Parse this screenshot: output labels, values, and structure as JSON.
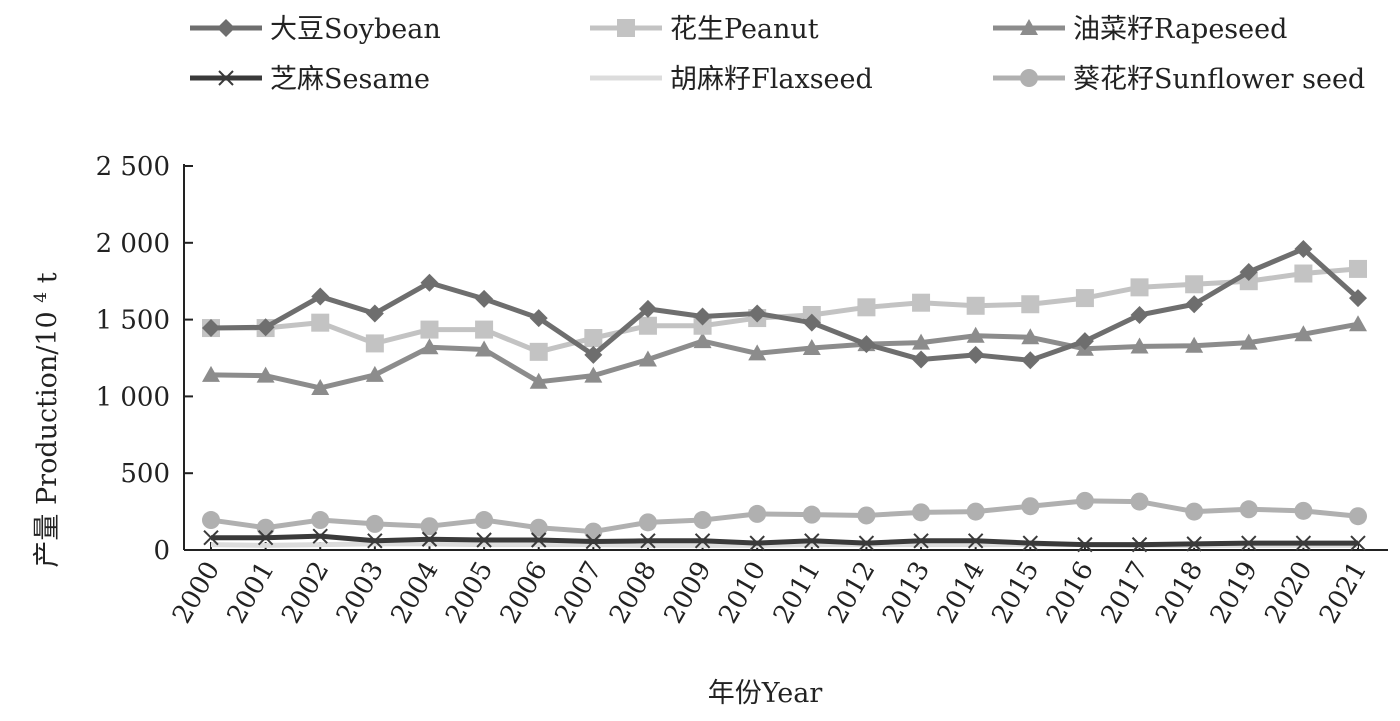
{
  "chart_data": {
    "type": "line",
    "title": "",
    "xlabel": "年份Year",
    "ylabel_cn": "产量",
    "ylabel_en": "Production/10",
    "ylabel_sup": "4",
    "ylabel_unit": " t",
    "ylim": [
      0,
      2500
    ],
    "yticks": [
      {
        "value": 0,
        "label": "0"
      },
      {
        "value": 500,
        "label": "500"
      },
      {
        "value": 1000,
        "label": "1 000"
      },
      {
        "value": 1500,
        "label": "1 500"
      },
      {
        "value": 2000,
        "label": "2 000"
      },
      {
        "value": 2500,
        "label": "2 500"
      }
    ],
    "grid": false,
    "legend_position": "top",
    "categories": [
      "2000",
      "2001",
      "2002",
      "2003",
      "2004",
      "2005",
      "2006",
      "2007",
      "2008",
      "2009",
      "2010",
      "2011",
      "2012",
      "2013",
      "2014",
      "2015",
      "2016",
      "2017",
      "2018",
      "2019",
      "2020",
      "2021"
    ],
    "series": [
      {
        "name": "大豆Soybean",
        "marker": "diamond",
        "color": "#6e6e6e",
        "values": [
          1445,
          1450,
          1650,
          1540,
          1740,
          1635,
          1510,
          1270,
          1570,
          1520,
          1540,
          1480,
          1340,
          1240,
          1270,
          1235,
          1360,
          1530,
          1600,
          1810,
          1960,
          1640
        ]
      },
      {
        "name": "花生Peanut",
        "marker": "square",
        "color": "#c3c3c3",
        "values": [
          1445,
          1445,
          1480,
          1345,
          1435,
          1435,
          1290,
          1380,
          1460,
          1460,
          1510,
          1530,
          1580,
          1610,
          1590,
          1600,
          1640,
          1710,
          1730,
          1750,
          1800,
          1830
        ]
      },
      {
        "name": "油菜籽Rapeseed",
        "marker": "triangle",
        "color": "#8c8c8c",
        "values": [
          1140,
          1135,
          1055,
          1140,
          1320,
          1305,
          1095,
          1135,
          1240,
          1360,
          1280,
          1315,
          1340,
          1350,
          1395,
          1385,
          1310,
          1325,
          1330,
          1350,
          1405,
          1470
        ]
      },
      {
        "name": "芝麻Sesame",
        "marker": "x",
        "color": "#3a3a3a",
        "values": [
          80,
          80,
          90,
          60,
          70,
          65,
          65,
          55,
          60,
          60,
          45,
          60,
          45,
          60,
          60,
          45,
          35,
          35,
          40,
          45,
          45,
          45
        ]
      },
      {
        "name": "胡麻籽Flaxseed",
        "marker": "none",
        "color": "#dcdcdc",
        "values": [
          35,
          30,
          35,
          40,
          40,
          35,
          35,
          35,
          30,
          30,
          30,
          35,
          35,
          35,
          35,
          35,
          35,
          30,
          30,
          30,
          30,
          30
        ]
      },
      {
        "name": "葵花籽Sunflower seed",
        "marker": "circle",
        "color": "#b0b0b0",
        "values": [
          195,
          145,
          195,
          170,
          155,
          195,
          145,
          120,
          180,
          195,
          235,
          230,
          225,
          245,
          250,
          285,
          320,
          315,
          250,
          265,
          255,
          220
        ]
      }
    ]
  }
}
